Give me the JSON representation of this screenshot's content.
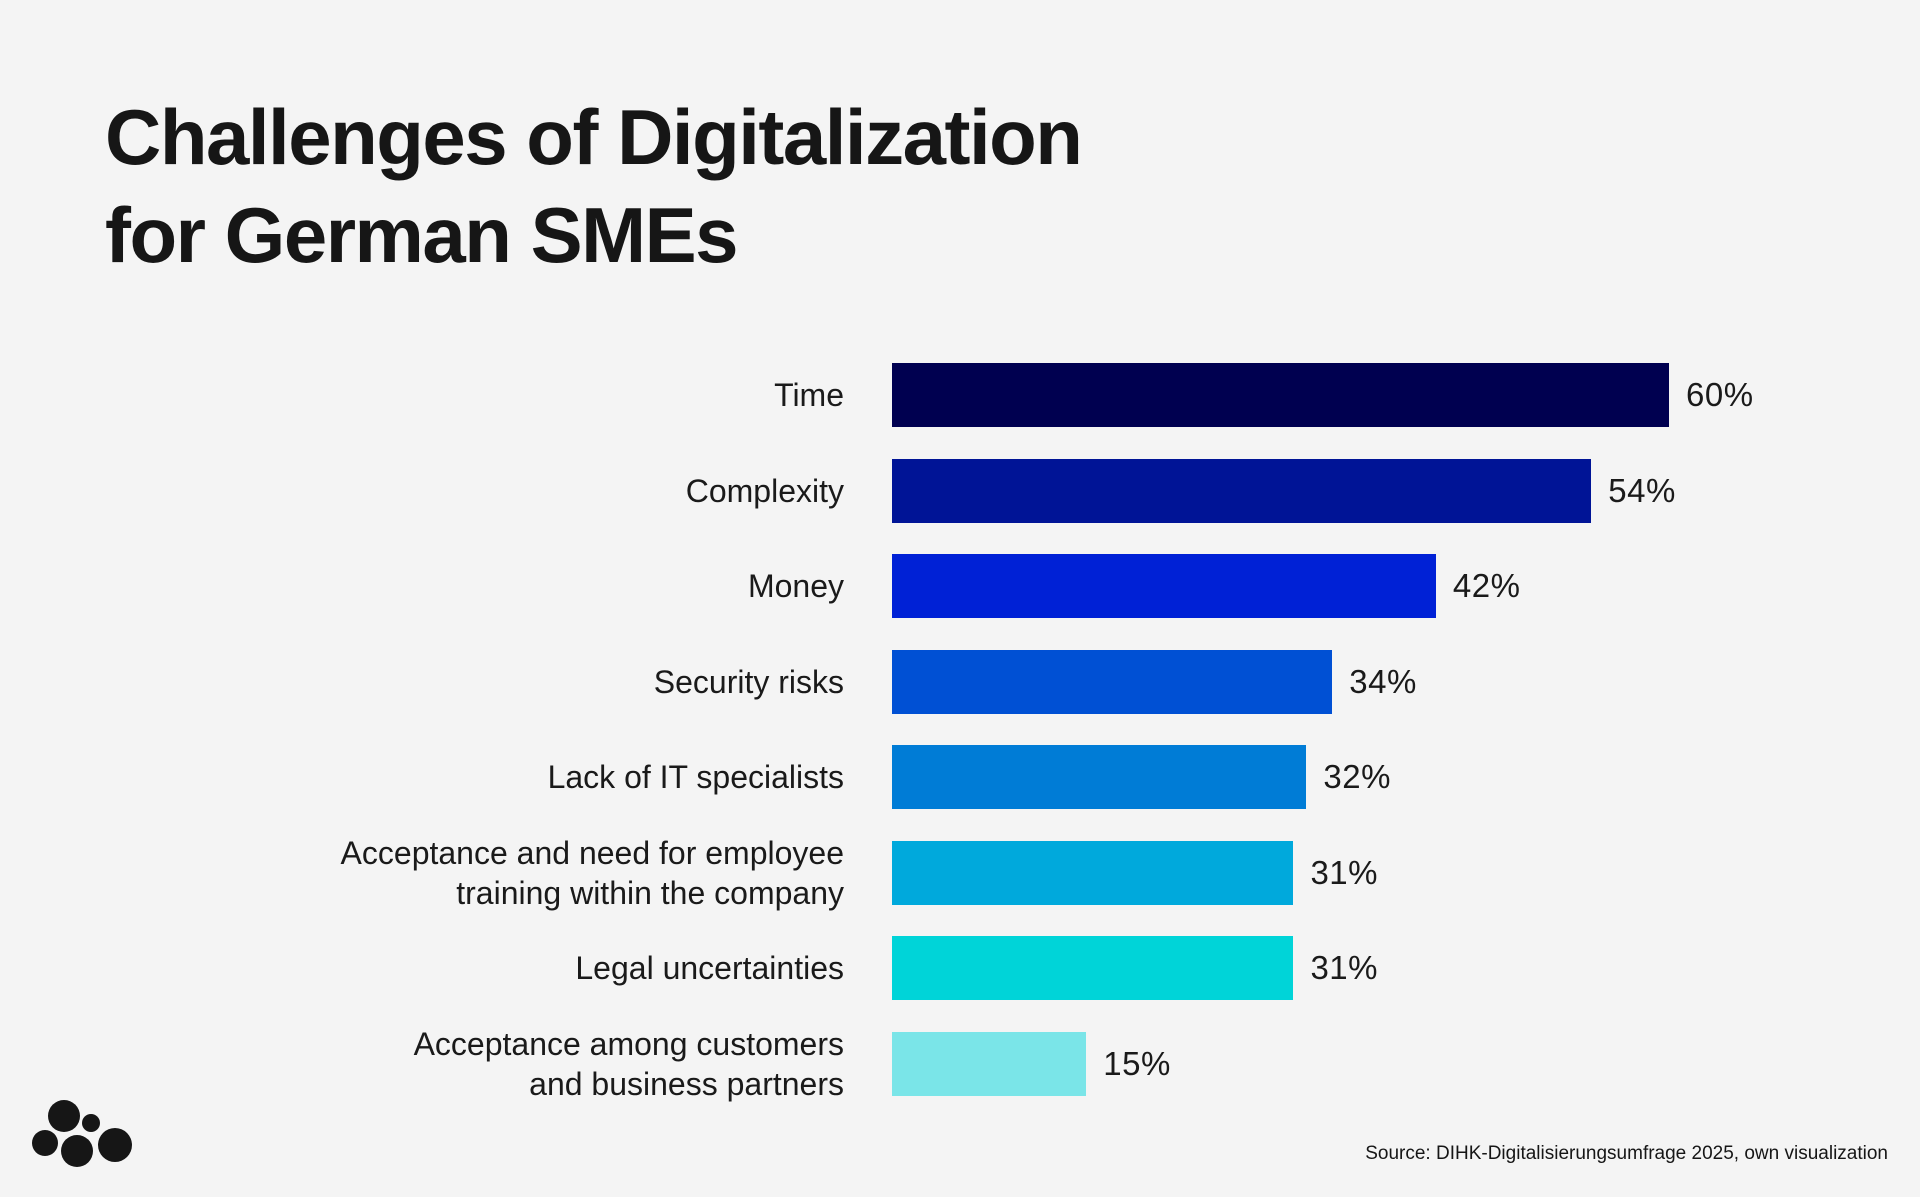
{
  "header": {
    "title_line1": "Challenges of Digitalization",
    "title_line2": "for German SMEs"
  },
  "footer": {
    "source": "Source: DIHK-Digitalisierungsumfrage 2025, own visualization"
  },
  "colors": {
    "background": "#f4f4f4",
    "bars": [
      "#000050",
      "#001496",
      "#0021d6",
      "#0050d4",
      "#007cd6",
      "#00a9dc",
      "#00d4d8",
      "#7ae5e8"
    ]
  },
  "icons": {
    "logo": "dots-cluster-logo"
  },
  "chart_data": {
    "type": "bar",
    "orientation": "horizontal",
    "title": "Challenges of Digitalization for German SMEs",
    "categories": [
      "Time",
      "Complexity",
      "Money",
      "Security risks",
      "Lack of IT specialists",
      "Acceptance and need for employee\ntraining within the company",
      "Legal uncertainties",
      "Acceptance among customers\nand business partners"
    ],
    "values": [
      60,
      54,
      42,
      34,
      32,
      31,
      31,
      15
    ],
    "value_labels": [
      "60%",
      "54%",
      "42%",
      "34%",
      "32%",
      "31%",
      "31%",
      "15%"
    ],
    "unit": "%",
    "xlim": [
      0,
      60
    ],
    "grid": false,
    "legend": "none"
  }
}
